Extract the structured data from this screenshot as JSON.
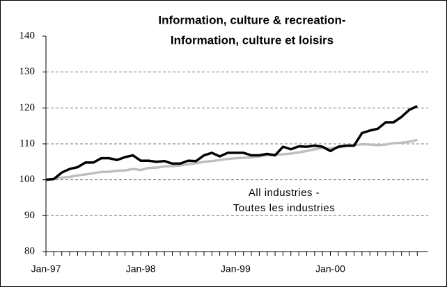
{
  "chart_data": {
    "type": "line",
    "title": [
      "Information, culture & recreation-",
      "Information, culture et loisirs"
    ],
    "categories": [
      "Jan-97",
      null,
      null,
      null,
      null,
      null,
      null,
      null,
      null,
      null,
      null,
      null,
      "Jan-98",
      null,
      null,
      null,
      null,
      null,
      null,
      null,
      null,
      null,
      null,
      null,
      "Jan-99",
      null,
      null,
      null,
      null,
      null,
      null,
      null,
      null,
      null,
      null,
      null,
      "Jan-00",
      null,
      null,
      null,
      null,
      null,
      null,
      null,
      null,
      null,
      null,
      null
    ],
    "series": [
      {
        "color": "#000000",
        "values": [
          100,
          100.2,
          102,
          103,
          103.5,
          104.8,
          104.8,
          106,
          106,
          105.5,
          106.3,
          106.8,
          105.3,
          105.3,
          105,
          105.2,
          104.5,
          104.5,
          105.3,
          105.2,
          106.8,
          107.5,
          106.5,
          107.5,
          107.5,
          107.5,
          106.8,
          106.8,
          107.2,
          106.8,
          109.2,
          108.5,
          109.3,
          109.2,
          109.5,
          109.2,
          108,
          109.2,
          109.5,
          109.5,
          113,
          113.7,
          114.2,
          116,
          116,
          117.5,
          119.5,
          120.5
        ]
      },
      {
        "name": [
          "All industries -",
          "Toutes les industries"
        ],
        "color": "#bfbfbf",
        "values": [
          100,
          100.3,
          100.6,
          100.8,
          101.2,
          101.5,
          101.8,
          102.2,
          102.2,
          102.5,
          102.6,
          103,
          102.7,
          103.3,
          103.4,
          103.7,
          103.8,
          104,
          104.3,
          104.6,
          105,
          105.2,
          105.5,
          105.8,
          106,
          106.1,
          106.2,
          106.5,
          106.8,
          107,
          107.1,
          107.3,
          107.6,
          108,
          108.5,
          108.8,
          108.7,
          109,
          109.4,
          109.6,
          109.9,
          109.8,
          109.6,
          109.8,
          110.2,
          110.3,
          110.6,
          111.1
        ]
      }
    ],
    "ylim": [
      80,
      140
    ],
    "yticks": [
      80,
      90,
      100,
      110,
      120,
      130,
      140
    ],
    "grid": true
  }
}
